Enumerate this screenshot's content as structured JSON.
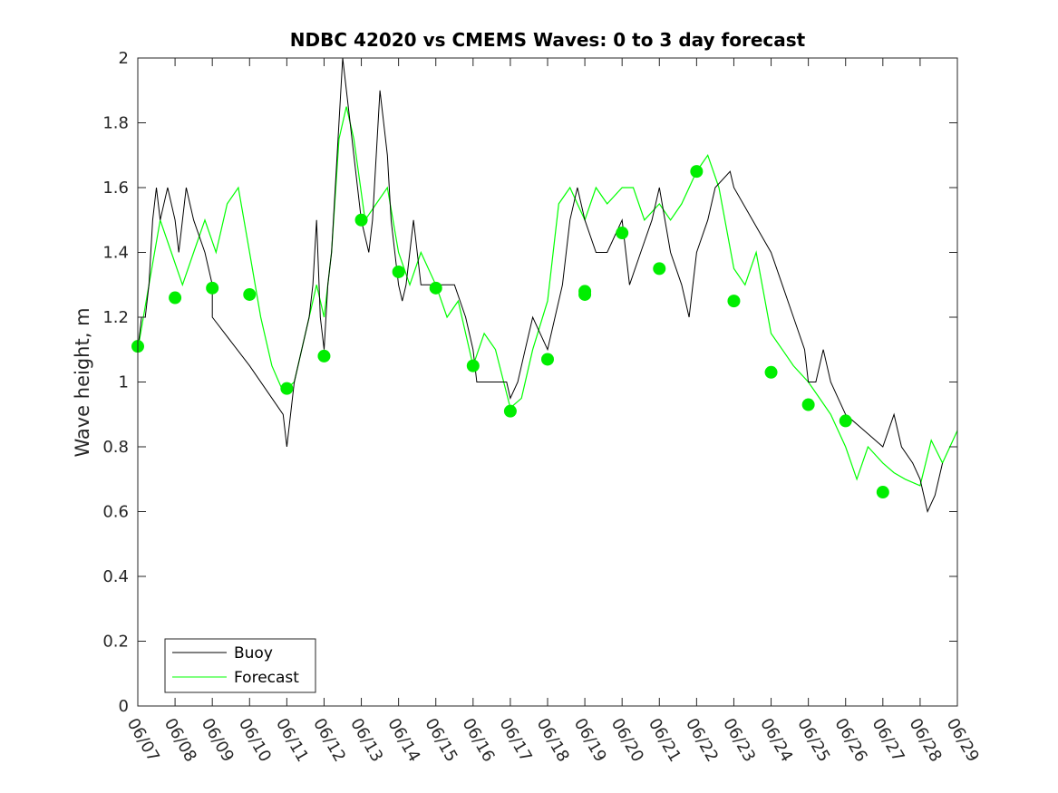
{
  "chart_data": {
    "type": "line",
    "title": "NDBC 42020 vs CMEMS Waves: 0 to 3 day forecast",
    "xlabel": "",
    "ylabel": "Wave height, m",
    "xlim": [
      "06/07",
      "06/29"
    ],
    "ylim": [
      0,
      2
    ],
    "x_ticks": [
      "06/07",
      "06/08",
      "06/09",
      "06/10",
      "06/11",
      "06/12",
      "06/13",
      "06/14",
      "06/15",
      "06/16",
      "06/17",
      "06/18",
      "06/19",
      "06/20",
      "06/21",
      "06/22",
      "06/23",
      "06/24",
      "06/25",
      "06/26",
      "06/27",
      "06/28",
      "06/29"
    ],
    "y_ticks": [
      "0",
      "0.2",
      "0.4",
      "0.6",
      "0.8",
      "1",
      "1.2",
      "1.4",
      "1.6",
      "1.8",
      "2"
    ],
    "grid": false,
    "legend": {
      "position": "bottom-left",
      "entries": [
        "Buoy",
        "Forecast"
      ]
    },
    "colors": {
      "buoy": "#000000",
      "forecast": "#00ff00",
      "analysis_points": "#00ee00"
    },
    "series": [
      {
        "name": "Buoy",
        "color": "#000000",
        "points": [
          [
            0.0,
            1.1
          ],
          [
            0.1,
            1.2
          ],
          [
            0.2,
            1.2
          ],
          [
            0.3,
            1.3
          ],
          [
            0.4,
            1.5
          ],
          [
            0.5,
            1.6
          ],
          [
            0.6,
            1.5
          ],
          [
            0.8,
            1.6
          ],
          [
            1.0,
            1.5
          ],
          [
            1.1,
            1.4
          ],
          [
            1.3,
            1.6
          ],
          [
            1.5,
            1.5
          ],
          [
            1.8,
            1.4
          ],
          [
            2.0,
            1.3
          ],
          [
            2.0,
            1.2
          ],
          [
            3.0,
            1.05
          ],
          [
            3.9,
            0.9
          ],
          [
            4.0,
            0.8
          ],
          [
            4.1,
            0.9
          ],
          [
            4.2,
            1.0
          ],
          [
            4.4,
            1.1
          ],
          [
            4.6,
            1.2
          ],
          [
            4.7,
            1.3
          ],
          [
            4.8,
            1.5
          ],
          [
            4.9,
            1.2
          ],
          [
            5.0,
            1.1
          ],
          [
            5.1,
            1.3
          ],
          [
            5.2,
            1.4
          ],
          [
            5.3,
            1.6
          ],
          [
            5.4,
            1.8
          ],
          [
            5.5,
            2.0
          ],
          [
            5.6,
            1.9
          ],
          [
            5.7,
            1.8
          ],
          [
            5.8,
            1.7
          ],
          [
            6.0,
            1.5
          ],
          [
            6.2,
            1.4
          ],
          [
            6.3,
            1.5
          ],
          [
            6.4,
            1.7
          ],
          [
            6.5,
            1.9
          ],
          [
            6.6,
            1.8
          ],
          [
            6.7,
            1.7
          ],
          [
            6.8,
            1.5
          ],
          [
            6.9,
            1.4
          ],
          [
            7.0,
            1.3
          ],
          [
            7.1,
            1.25
          ],
          [
            7.2,
            1.3
          ],
          [
            7.4,
            1.5
          ],
          [
            7.5,
            1.4
          ],
          [
            7.6,
            1.3
          ],
          [
            7.8,
            1.3
          ],
          [
            8.0,
            1.3
          ],
          [
            8.2,
            1.3
          ],
          [
            8.5,
            1.3
          ],
          [
            8.8,
            1.2
          ],
          [
            9.0,
            1.1
          ],
          [
            9.1,
            1.0
          ],
          [
            9.5,
            1.0
          ],
          [
            9.9,
            1.0
          ],
          [
            10.0,
            0.95
          ],
          [
            10.2,
            1.0
          ],
          [
            10.4,
            1.1
          ],
          [
            10.6,
            1.2
          ],
          [
            10.8,
            1.15
          ],
          [
            11.0,
            1.1
          ],
          [
            11.2,
            1.2
          ],
          [
            11.4,
            1.3
          ],
          [
            11.6,
            1.5
          ],
          [
            11.8,
            1.6
          ],
          [
            12.0,
            1.5
          ],
          [
            12.3,
            1.4
          ],
          [
            12.6,
            1.4
          ],
          [
            13.0,
            1.5
          ],
          [
            13.2,
            1.3
          ],
          [
            13.5,
            1.4
          ],
          [
            13.8,
            1.5
          ],
          [
            14.0,
            1.6
          ],
          [
            14.3,
            1.4
          ],
          [
            14.6,
            1.3
          ],
          [
            14.8,
            1.2
          ],
          [
            15.0,
            1.4
          ],
          [
            15.3,
            1.5
          ],
          [
            15.5,
            1.6
          ],
          [
            15.9,
            1.65
          ],
          [
            16.0,
            1.6
          ],
          [
            16.5,
            1.5
          ],
          [
            17.0,
            1.4
          ],
          [
            17.3,
            1.3
          ],
          [
            17.6,
            1.2
          ],
          [
            17.9,
            1.1
          ],
          [
            18.0,
            1.0
          ],
          [
            18.2,
            1.0
          ],
          [
            18.4,
            1.1
          ],
          [
            18.6,
            1.0
          ],
          [
            18.8,
            0.95
          ],
          [
            19.0,
            0.9
          ],
          [
            19.5,
            0.85
          ],
          [
            20.0,
            0.8
          ],
          [
            20.3,
            0.9
          ],
          [
            20.5,
            0.8
          ],
          [
            20.8,
            0.75
          ],
          [
            21.0,
            0.7
          ],
          [
            21.2,
            0.6
          ],
          [
            21.4,
            0.65
          ],
          [
            21.6,
            0.75
          ]
        ]
      },
      {
        "name": "Forecast",
        "color": "#00ff00",
        "points": [
          [
            0.0,
            1.1
          ],
          [
            0.3,
            1.3
          ],
          [
            0.6,
            1.5
          ],
          [
            0.9,
            1.4
          ],
          [
            1.2,
            1.3
          ],
          [
            1.5,
            1.4
          ],
          [
            1.8,
            1.5
          ],
          [
            2.1,
            1.4
          ],
          [
            2.4,
            1.55
          ],
          [
            2.7,
            1.6
          ],
          [
            3.0,
            1.4
          ],
          [
            3.3,
            1.2
          ],
          [
            3.6,
            1.05
          ],
          [
            3.9,
            0.97
          ],
          [
            4.2,
            1.0
          ],
          [
            4.5,
            1.15
          ],
          [
            4.8,
            1.3
          ],
          [
            5.0,
            1.2
          ],
          [
            5.2,
            1.4
          ],
          [
            5.4,
            1.75
          ],
          [
            5.6,
            1.85
          ],
          [
            5.8,
            1.75
          ],
          [
            6.1,
            1.5
          ],
          [
            6.4,
            1.55
          ],
          [
            6.7,
            1.6
          ],
          [
            7.0,
            1.4
          ],
          [
            7.3,
            1.3
          ],
          [
            7.6,
            1.4
          ],
          [
            8.0,
            1.3
          ],
          [
            8.3,
            1.2
          ],
          [
            8.6,
            1.25
          ],
          [
            9.0,
            1.05
          ],
          [
            9.3,
            1.15
          ],
          [
            9.6,
            1.1
          ],
          [
            10.0,
            0.92
          ],
          [
            10.3,
            0.95
          ],
          [
            10.6,
            1.1
          ],
          [
            11.0,
            1.25
          ],
          [
            11.3,
            1.55
          ],
          [
            11.6,
            1.6
          ],
          [
            12.0,
            1.5
          ],
          [
            12.3,
            1.6
          ],
          [
            12.6,
            1.55
          ],
          [
            13.0,
            1.6
          ],
          [
            13.3,
            1.6
          ],
          [
            13.6,
            1.5
          ],
          [
            14.0,
            1.55
          ],
          [
            14.3,
            1.5
          ],
          [
            14.6,
            1.55
          ],
          [
            15.0,
            1.65
          ],
          [
            15.3,
            1.7
          ],
          [
            15.6,
            1.6
          ],
          [
            16.0,
            1.35
          ],
          [
            16.3,
            1.3
          ],
          [
            16.6,
            1.4
          ],
          [
            17.0,
            1.15
          ],
          [
            17.3,
            1.1
          ],
          [
            17.6,
            1.05
          ],
          [
            18.0,
            1.0
          ],
          [
            18.3,
            0.95
          ],
          [
            18.6,
            0.9
          ],
          [
            19.0,
            0.8
          ],
          [
            19.3,
            0.7
          ],
          [
            19.6,
            0.8
          ],
          [
            20.0,
            0.75
          ],
          [
            20.3,
            0.72
          ],
          [
            20.6,
            0.7
          ],
          [
            21.0,
            0.68
          ],
          [
            21.3,
            0.82
          ],
          [
            21.6,
            0.75
          ],
          [
            22.0,
            0.85
          ]
        ]
      }
    ],
    "analysis_points": {
      "name": "Forecast",
      "points": [
        [
          0.0,
          1.11
        ],
        [
          1.0,
          1.26
        ],
        [
          2.0,
          1.29
        ],
        [
          3.0,
          1.27
        ],
        [
          4.0,
          0.98
        ],
        [
          5.0,
          1.08
        ],
        [
          6.0,
          1.5
        ],
        [
          7.0,
          1.34
        ],
        [
          8.0,
          1.29
        ],
        [
          9.0,
          1.05
        ],
        [
          10.0,
          0.91
        ],
        [
          11.0,
          1.07
        ],
        [
          12.0,
          1.28
        ],
        [
          12.0,
          1.27
        ],
        [
          13.0,
          1.46
        ],
        [
          14.0,
          1.35
        ],
        [
          15.0,
          1.65
        ],
        [
          16.0,
          1.25
        ],
        [
          17.0,
          1.03
        ],
        [
          18.0,
          0.93
        ],
        [
          19.0,
          0.88
        ],
        [
          20.0,
          0.66
        ]
      ]
    }
  }
}
